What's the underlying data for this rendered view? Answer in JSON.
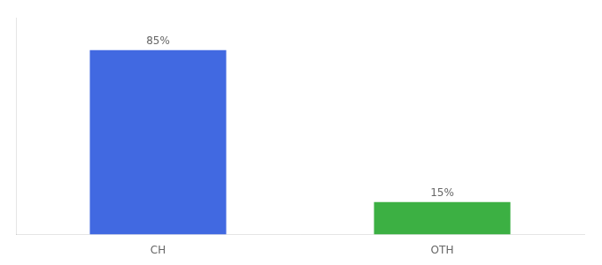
{
  "chart_data": {
    "type": "bar",
    "categories": [
      "CH",
      "OTH"
    ],
    "values": [
      85,
      15
    ],
    "value_labels": [
      "85%",
      "15%"
    ],
    "colors": [
      "#4169e1",
      "#3cb043"
    ],
    "ylim": [
      0,
      100
    ],
    "data_labels": true,
    "tick_labels": "x",
    "grid": false
  }
}
